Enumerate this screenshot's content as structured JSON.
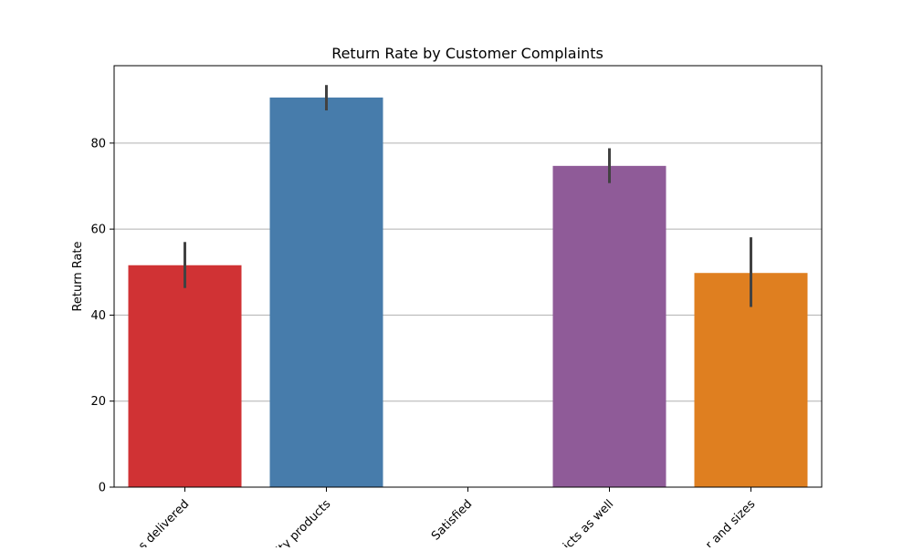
{
  "chart_data": {
    "type": "bar",
    "title": "Return Rate by Customer Complaints",
    "xlabel": "",
    "ylabel": "Return Rate",
    "categories": [
      "Wrong items delivered",
      "Low quality products",
      "Satisfied",
      "Damaged products as well",
      "Limited color and sizes"
    ],
    "visible_tick_labels": [
      "s delivered",
      "ity products",
      "Satisfied",
      "icts as well",
      "r and sizes"
    ],
    "values": [
      51.6,
      90.6,
      0,
      74.7,
      49.8
    ],
    "error_bars": [
      [
        46.3,
        57.0
      ],
      [
        87.6,
        93.5
      ],
      null,
      [
        70.7,
        78.8
      ],
      [
        41.9,
        58.1
      ]
    ],
    "colors": [
      "#d03234",
      "#477cab",
      "#68a85c",
      "#8f5b98",
      "#df7f20"
    ],
    "ylim": [
      0,
      98
    ],
    "yticks": [
      0,
      20,
      40,
      60,
      80
    ],
    "grid": "horizontal",
    "legend": "none"
  }
}
